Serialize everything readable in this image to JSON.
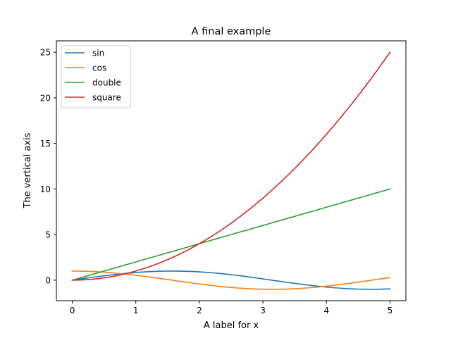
{
  "chart_data": {
    "type": "line",
    "title": "A final example",
    "xlabel": "A label for x",
    "ylabel": "The vertical axis",
    "xlim": [
      -0.25,
      5.25
    ],
    "ylim": [
      -2.25,
      26.25
    ],
    "xticks": [
      0,
      1,
      2,
      3,
      4,
      5
    ],
    "yticks": [
      0,
      5,
      10,
      15,
      20,
      25
    ],
    "grid": false,
    "legend_position": "top-left",
    "x": [
      0.0,
      0.1,
      0.2,
      0.3,
      0.4,
      0.5,
      0.6,
      0.7,
      0.8,
      0.9,
      1.0,
      1.1,
      1.2,
      1.3,
      1.4,
      1.5,
      1.6,
      1.7,
      1.8,
      1.9,
      2.0,
      2.1,
      2.2,
      2.3,
      2.4,
      2.5,
      2.6,
      2.7,
      2.8,
      2.9,
      3.0,
      3.1,
      3.2,
      3.3,
      3.4,
      3.5,
      3.6,
      3.7,
      3.8,
      3.9,
      4.0,
      4.1,
      4.2,
      4.3,
      4.4,
      4.5,
      4.6,
      4.7,
      4.8,
      4.9,
      5.0
    ],
    "series": [
      {
        "name": "sin",
        "color": "#1f77b4",
        "values": [
          0.0,
          0.1,
          0.2,
          0.3,
          0.39,
          0.48,
          0.56,
          0.64,
          0.72,
          0.78,
          0.84,
          0.89,
          0.93,
          0.96,
          0.99,
          1.0,
          1.0,
          0.99,
          0.97,
          0.95,
          0.91,
          0.86,
          0.81,
          0.75,
          0.68,
          0.6,
          0.52,
          0.43,
          0.33,
          0.24,
          0.14,
          0.04,
          -0.06,
          -0.16,
          -0.26,
          -0.35,
          -0.44,
          -0.53,
          -0.61,
          -0.69,
          -0.76,
          -0.82,
          -0.87,
          -0.92,
          -0.95,
          -0.98,
          -0.99,
          -1.0,
          -1.0,
          -0.98,
          -0.96
        ]
      },
      {
        "name": "cos",
        "color": "#ff7f0e",
        "values": [
          1.0,
          1.0,
          0.98,
          0.96,
          0.92,
          0.88,
          0.83,
          0.76,
          0.7,
          0.62,
          0.54,
          0.45,
          0.36,
          0.27,
          0.17,
          0.07,
          -0.03,
          -0.13,
          -0.23,
          -0.32,
          -0.42,
          -0.5,
          -0.59,
          -0.67,
          -0.74,
          -0.8,
          -0.86,
          -0.9,
          -0.94,
          -0.97,
          -0.99,
          -1.0,
          -1.0,
          -0.99,
          -0.97,
          -0.94,
          -0.9,
          -0.85,
          -0.79,
          -0.73,
          -0.65,
          -0.58,
          -0.49,
          -0.4,
          -0.31,
          -0.21,
          -0.11,
          -0.01,
          0.09,
          0.19,
          0.28
        ]
      },
      {
        "name": "double",
        "color": "#2ca02c",
        "values": [
          0.0,
          0.2,
          0.4,
          0.6,
          0.8,
          1.0,
          1.2,
          1.4,
          1.6,
          1.8,
          2.0,
          2.2,
          2.4,
          2.6,
          2.8,
          3.0,
          3.2,
          3.4,
          3.6,
          3.8,
          4.0,
          4.2,
          4.4,
          4.6,
          4.8,
          5.0,
          5.2,
          5.4,
          5.6,
          5.8,
          6.0,
          6.2,
          6.4,
          6.6,
          6.8,
          7.0,
          7.2,
          7.4,
          7.6,
          7.8,
          8.0,
          8.2,
          8.4,
          8.6,
          8.8,
          9.0,
          9.2,
          9.4,
          9.6,
          9.8,
          10.0
        ]
      },
      {
        "name": "square",
        "color": "#d62728",
        "values": [
          0.0,
          0.01,
          0.04,
          0.09,
          0.16,
          0.25,
          0.36,
          0.49,
          0.64,
          0.81,
          1.0,
          1.21,
          1.44,
          1.69,
          1.96,
          2.25,
          2.56,
          2.89,
          3.24,
          3.61,
          4.0,
          4.41,
          4.84,
          5.29,
          5.76,
          6.25,
          6.76,
          7.29,
          7.84,
          8.41,
          9.0,
          9.61,
          10.24,
          10.89,
          11.56,
          12.25,
          12.96,
          13.69,
          14.44,
          15.21,
          16.0,
          16.81,
          17.64,
          18.49,
          19.36,
          20.25,
          21.16,
          22.09,
          23.04,
          24.01,
          25.0
        ]
      }
    ]
  }
}
